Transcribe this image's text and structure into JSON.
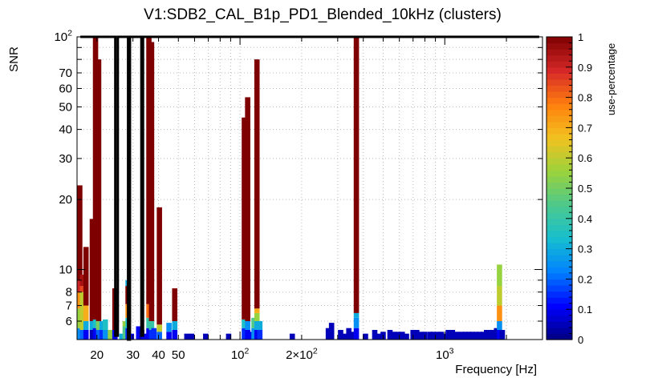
{
  "chart_data": {
    "type": "heatmap",
    "title": "V1:SDB2_CAL_B1p_PD1_Blended_10kHz (clusters)",
    "xlabel": "Frequency [Hz]",
    "ylabel": "SNR",
    "zlabel": "use-percentage",
    "x_scale": "log",
    "y_scale": "log",
    "xlim": [
      16,
      3000
    ],
    "ylim": [
      5,
      100
    ],
    "zlim": [
      0,
      1
    ],
    "grid": true,
    "x_tick_labels": [
      {
        "value": 20,
        "label": "20"
      },
      {
        "value": 30,
        "label": "30"
      },
      {
        "value": 40,
        "label": "40"
      },
      {
        "value": 50,
        "label": "50"
      },
      {
        "value": 100,
        "label": "10",
        "exp": "2"
      },
      {
        "value": 200,
        "label": "2×10",
        "exp": "2"
      },
      {
        "value": 1000,
        "label": "10",
        "exp": "3"
      }
    ],
    "y_tick_labels": [
      {
        "value": 6,
        "label": "6"
      },
      {
        "value": 7,
        "label": "7"
      },
      {
        "value": 8,
        "label": "8"
      },
      {
        "value": 10,
        "label": "10"
      },
      {
        "value": 20,
        "label": "20"
      },
      {
        "value": 30,
        "label": "30"
      },
      {
        "value": 40,
        "label": "40"
      },
      {
        "value": 50,
        "label": "50"
      },
      {
        "value": 60,
        "label": "60"
      },
      {
        "value": 70,
        "label": "70"
      },
      {
        "value": 100,
        "label": "10",
        "exp": "2"
      }
    ],
    "z_ticks": [
      {
        "value": 0,
        "label": "0"
      },
      {
        "value": 0.1,
        "label": "0.1"
      },
      {
        "value": 0.2,
        "label": "0.2"
      },
      {
        "value": 0.3,
        "label": "0.3"
      },
      {
        "value": 0.4,
        "label": "0.4"
      },
      {
        "value": 0.5,
        "label": "0.5"
      },
      {
        "value": 0.6,
        "label": "0.6"
      },
      {
        "value": 0.7,
        "label": "0.7"
      },
      {
        "value": 0.8,
        "label": "0.8"
      },
      {
        "value": 0.9,
        "label": "0.9"
      },
      {
        "value": 1,
        "label": "1"
      }
    ],
    "colormap": [
      "#00007f",
      "#0000ff",
      "#0080ff",
      "#17becf",
      "#4cc98c",
      "#9bd23c",
      "#f2c21f",
      "#ff7f0e",
      "#d62728",
      "#7f0000"
    ],
    "columns": [
      {
        "f": 16.5,
        "cells": [
          [
            5,
            5.6,
            0.25
          ],
          [
            5.6,
            6.8,
            0.55
          ],
          [
            6.8,
            8,
            0.75
          ],
          [
            8,
            9,
            0.9
          ],
          [
            9,
            23,
            1.0
          ]
        ]
      },
      {
        "f": 17.0,
        "cells": [
          [
            5,
            5.5,
            0.2
          ],
          [
            5.5,
            8,
            0.6
          ],
          [
            8,
            8.5,
            0.85
          ],
          [
            8.5,
            9.5,
            0.95
          ]
        ]
      },
      {
        "f": 17.7,
        "cells": [
          [
            5,
            5.5,
            0.1
          ],
          [
            5.5,
            6,
            0.3
          ],
          [
            6,
            7,
            0.7
          ],
          [
            7,
            12.5,
            1.0
          ]
        ]
      },
      {
        "f": 19.0,
        "cells": [
          [
            5,
            5.5,
            0.05
          ],
          [
            5.5,
            6,
            0.3
          ],
          [
            6,
            16.5,
            1.0
          ]
        ]
      },
      {
        "f": 19.7,
        "cells": [
          [
            5,
            5.6,
            0.1
          ],
          [
            5.6,
            6.1,
            0.35
          ],
          [
            6.1,
            100,
            1.0
          ]
        ]
      },
      {
        "f": 20.4,
        "cells": [
          [
            5,
            5.5,
            0.2
          ],
          [
            5.5,
            6,
            0.5
          ],
          [
            6,
            80,
            1.0
          ]
        ]
      },
      {
        "f": 21.2,
        "cells": [
          [
            5,
            5.5,
            0.15
          ],
          [
            5.5,
            6,
            0.3
          ]
        ]
      },
      {
        "f": 22.0,
        "cells": [
          [
            5,
            5.5,
            0.25
          ],
          [
            5.5,
            6.1,
            0.35
          ]
        ]
      },
      {
        "f": 23.3,
        "cells": [
          [
            5,
            5.5,
            0.55
          ]
        ]
      },
      {
        "f": 24.5,
        "cells": [
          [
            5,
            5.5,
            0.1
          ],
          [
            5.5,
            8.3,
            1.0
          ]
        ]
      },
      {
        "f": 26.5,
        "cells": [
          [
            5,
            5.3,
            0.3
          ]
        ]
      },
      {
        "f": 27.5,
        "cells": [
          [
            5,
            5.7,
            0.45
          ],
          [
            5.7,
            6,
            0.55
          ]
        ]
      },
      {
        "f": 28.4,
        "cells": [
          [
            5,
            5.6,
            0.15
          ],
          [
            5.6,
            6.2,
            0.35
          ],
          [
            6.2,
            7.1,
            0.75
          ],
          [
            7.1,
            8.5,
            1.0
          ],
          [
            8.5,
            9,
            0.3
          ]
        ]
      },
      {
        "f": 29.5,
        "cells": [
          [
            5,
            5.3,
            0.1
          ]
        ]
      },
      {
        "f": 32.0,
        "cells": [
          [
            5,
            5.7,
            0.1
          ]
        ]
      },
      {
        "f": 33.1,
        "cells": [
          [
            5,
            5.5,
            0.05
          ]
        ]
      },
      {
        "f": 34.0,
        "cells": [
          [
            5,
            5.3,
            0.1
          ]
        ]
      },
      {
        "f": 35.9,
        "cells": [
          [
            5,
            5.6,
            0.1
          ],
          [
            5.6,
            6.2,
            0.4
          ],
          [
            6.2,
            7.1,
            0.8
          ],
          [
            7.1,
            100,
            1.0
          ]
        ]
      },
      {
        "f": 37.0,
        "cells": [
          [
            5,
            5.5,
            0.15
          ],
          [
            5.5,
            6,
            0.4
          ],
          [
            6,
            95,
            1.0
          ]
        ]
      },
      {
        "f": 38.0,
        "cells": [
          [
            5,
            5.6,
            0.15
          ]
        ]
      },
      {
        "f": 40.4,
        "cells": [
          [
            5,
            5.4,
            0.2
          ],
          [
            5.4,
            5.8,
            0.6
          ],
          [
            5.8,
            18.5,
            1.0
          ]
        ]
      },
      {
        "f": 45.0,
        "cells": [
          [
            5,
            5.4,
            0.1
          ],
          [
            5.4,
            5.9,
            0.25
          ]
        ]
      },
      {
        "f": 48.0,
        "cells": [
          [
            5,
            5.5,
            0.1
          ],
          [
            5.5,
            6,
            0.3
          ],
          [
            6,
            8.3,
            1.0
          ]
        ]
      },
      {
        "f": 55.0,
        "cells": [
          [
            5,
            5.3,
            0.05
          ]
        ]
      },
      {
        "f": 58.0,
        "cells": [
          [
            5,
            5.3,
            0.05
          ]
        ]
      },
      {
        "f": 68.0,
        "cells": [
          [
            5,
            5.3,
            0.05
          ]
        ]
      },
      {
        "f": 88.0,
        "cells": [
          [
            5,
            5.3,
            0.05
          ]
        ]
      },
      {
        "f": 105.0,
        "cells": [
          [
            5,
            5.6,
            0.15
          ],
          [
            5.6,
            6.1,
            0.35
          ],
          [
            6.1,
            45,
            1.0
          ]
        ]
      },
      {
        "f": 109.0,
        "cells": [
          [
            5,
            5.5,
            0.1
          ],
          [
            5.5,
            6,
            0.25
          ],
          [
            6,
            55,
            1.0
          ]
        ]
      },
      {
        "f": 113.0,
        "cells": [
          [
            5,
            5.4,
            0.1
          ]
        ]
      },
      {
        "f": 117.0,
        "cells": [
          [
            5,
            5.6,
            0.25
          ],
          [
            5.6,
            6.2,
            0.45
          ]
        ]
      },
      {
        "f": 121.0,
        "cells": [
          [
            5,
            5.5,
            0.1
          ],
          [
            5.5,
            6,
            0.3
          ],
          [
            6,
            6.5,
            0.55
          ],
          [
            6.5,
            6.8,
            0.7
          ],
          [
            6.8,
            80,
            1.0
          ]
        ]
      },
      {
        "f": 125.0,
        "cells": [
          [
            5,
            5.5,
            0.15
          ],
          [
            5.5,
            6,
            0.3
          ]
        ]
      },
      {
        "f": 180.0,
        "cells": [
          [
            5,
            5.3,
            0.05
          ]
        ]
      },
      {
        "f": 270.0,
        "cells": [
          [
            5,
            5.6,
            0.05
          ]
        ]
      },
      {
        "f": 280.0,
        "cells": [
          [
            5,
            5.9,
            0.05
          ]
        ]
      },
      {
        "f": 310.0,
        "cells": [
          [
            5,
            5.5,
            0.05
          ]
        ]
      },
      {
        "f": 325.0,
        "cells": [
          [
            5,
            5.3,
            0.05
          ]
        ]
      },
      {
        "f": 340.0,
        "cells": [
          [
            5,
            5.6,
            0.05
          ]
        ]
      },
      {
        "f": 355.0,
        "cells": [
          [
            5,
            5.4,
            0.05
          ]
        ]
      },
      {
        "f": 370.0,
        "cells": [
          [
            5,
            5.6,
            0.1
          ],
          [
            5.6,
            6.2,
            0.25
          ],
          [
            6.2,
            6.5,
            0.3
          ],
          [
            6.5,
            100,
            1.0
          ]
        ]
      },
      {
        "f": 410.0,
        "cells": [
          [
            5,
            5.3,
            0.05
          ]
        ]
      },
      {
        "f": 455.0,
        "cells": [
          [
            5,
            5.5,
            0.05
          ]
        ]
      },
      {
        "f": 475.0,
        "cells": [
          [
            5,
            5.3,
            0.05
          ]
        ]
      },
      {
        "f": 500.0,
        "cells": [
          [
            5,
            5.4,
            0.05
          ]
        ]
      },
      {
        "f": 540.0,
        "cells": [
          [
            5,
            5.5,
            0.05
          ]
        ]
      },
      {
        "f": 560.0,
        "cells": [
          [
            5,
            5.4,
            0.05
          ]
        ]
      },
      {
        "f": 590.0,
        "cells": [
          [
            5,
            5.4,
            0.05
          ]
        ]
      },
      {
        "f": 620.0,
        "cells": [
          [
            5,
            5.4,
            0.05
          ]
        ]
      },
      {
        "f": 650.0,
        "cells": [
          [
            5,
            5.3,
            0.05
          ]
        ]
      },
      {
        "f": 700.0,
        "cells": [
          [
            5,
            5.5,
            0.05
          ]
        ]
      },
      {
        "f": 730.0,
        "cells": [
          [
            5,
            5.5,
            0.05
          ]
        ]
      },
      {
        "f": 760.0,
        "cells": [
          [
            5,
            5.4,
            0.05
          ]
        ]
      },
      {
        "f": 800.0,
        "cells": [
          [
            5,
            5.4,
            0.05
          ]
        ]
      },
      {
        "f": 850.0,
        "cells": [
          [
            5,
            5.4,
            0.05
          ]
        ]
      },
      {
        "f": 880.0,
        "cells": [
          [
            5,
            5.4,
            0.05
          ]
        ]
      },
      {
        "f": 920.0,
        "cells": [
          [
            5,
            5.4,
            0.05
          ]
        ]
      },
      {
        "f": 960.0,
        "cells": [
          [
            5,
            5.4,
            0.05
          ]
        ]
      },
      {
        "f": 1000.0,
        "cells": [
          [
            5,
            5.3,
            0.05
          ]
        ]
      },
      {
        "f": 1040.0,
        "cells": [
          [
            5,
            5.5,
            0.05
          ]
        ]
      },
      {
        "f": 1090.0,
        "cells": [
          [
            5,
            5.5,
            0.05
          ]
        ]
      },
      {
        "f": 1150.0,
        "cells": [
          [
            5,
            5.4,
            0.05
          ]
        ]
      },
      {
        "f": 1210.0,
        "cells": [
          [
            5,
            5.4,
            0.05
          ]
        ]
      },
      {
        "f": 1260.0,
        "cells": [
          [
            5,
            5.4,
            0.05
          ]
        ]
      },
      {
        "f": 1310.0,
        "cells": [
          [
            5,
            5.4,
            0.05
          ]
        ]
      },
      {
        "f": 1360.0,
        "cells": [
          [
            5,
            5.4,
            0.05
          ]
        ]
      },
      {
        "f": 1420.0,
        "cells": [
          [
            5,
            5.4,
            0.05
          ]
        ]
      },
      {
        "f": 1480.0,
        "cells": [
          [
            5,
            5.4,
            0.05
          ]
        ]
      },
      {
        "f": 1540.0,
        "cells": [
          [
            5,
            5.4,
            0.05
          ]
        ]
      },
      {
        "f": 1600.0,
        "cells": [
          [
            5,
            5.5,
            0.05
          ]
        ]
      },
      {
        "f": 1660.0,
        "cells": [
          [
            5,
            5.5,
            0.05
          ]
        ]
      },
      {
        "f": 1720.0,
        "cells": [
          [
            5,
            5.5,
            0.05
          ]
        ]
      },
      {
        "f": 1790.0,
        "cells": [
          [
            5,
            5.6,
            0.05
          ]
        ]
      },
      {
        "f": 1850.0,
        "cells": [
          [
            5,
            5.5,
            0.1
          ],
          [
            5.5,
            6,
            0.25
          ],
          [
            6,
            7,
            0.75
          ],
          [
            7,
            8.5,
            0.6
          ],
          [
            8.5,
            10.5,
            0.55
          ]
        ]
      },
      {
        "f": 1910.0,
        "cells": [
          [
            5,
            5.5,
            0.05
          ]
        ]
      }
    ],
    "outline": [
      [
        16.6,
        100
      ],
      [
        24.6,
        100
      ],
      [
        24.6,
        5.2
      ],
      [
        25.3,
        5.2
      ],
      [
        25.3,
        100
      ],
      [
        28.4,
        100
      ],
      [
        28.4,
        5
      ],
      [
        29.0,
        5
      ],
      [
        29.0,
        100
      ],
      [
        33.0,
        100
      ],
      [
        33.0,
        5.2
      ],
      [
        33.6,
        5.2
      ],
      [
        33.6,
        100
      ],
      [
        2890,
        100
      ]
    ]
  }
}
